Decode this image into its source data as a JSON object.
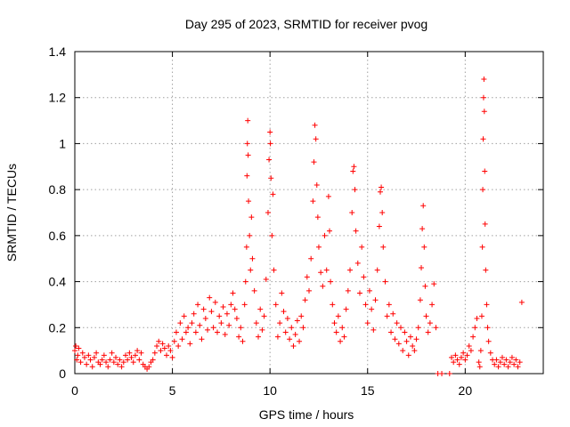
{
  "chart_data": {
    "type": "scatter",
    "title": "Day 295 of 2023, SRMTID for receiver pvog",
    "xlabel": "GPS time / hours",
    "ylabel": "SRMTID / TECUs",
    "xlim": [
      0,
      24
    ],
    "ylim": [
      0,
      1.4
    ],
    "xticks": [
      0,
      5,
      10,
      15,
      20
    ],
    "xtick_labels": [
      "0",
      "5",
      "10",
      "15",
      "20"
    ],
    "yticks": [
      0,
      0.2,
      0.4,
      0.6,
      0.8,
      1.0,
      1.2,
      1.4
    ],
    "ytick_labels": [
      "0",
      "0.2",
      "0.4",
      "0.6",
      "0.8",
      "1",
      "1.2",
      "1.4"
    ],
    "grid": true,
    "marker": "+",
    "color": "#ff0000",
    "series": [
      {
        "name": "SRMTID",
        "points": [
          [
            0.0,
            0.1
          ],
          [
            0.05,
            0.12
          ],
          [
            0.1,
            0.06
          ],
          [
            0.15,
            0.08
          ],
          [
            0.2,
            0.11
          ],
          [
            0.3,
            0.05
          ],
          [
            0.4,
            0.09
          ],
          [
            0.5,
            0.07
          ],
          [
            0.6,
            0.04
          ],
          [
            0.7,
            0.08
          ],
          [
            0.8,
            0.06
          ],
          [
            0.9,
            0.03
          ],
          [
            1.0,
            0.07
          ],
          [
            1.1,
            0.09
          ],
          [
            1.2,
            0.05
          ],
          [
            1.3,
            0.04
          ],
          [
            1.4,
            0.06
          ],
          [
            1.5,
            0.08
          ],
          [
            1.6,
            0.05
          ],
          [
            1.7,
            0.03
          ],
          [
            1.8,
            0.06
          ],
          [
            1.9,
            0.09
          ],
          [
            2.0,
            0.05
          ],
          [
            2.1,
            0.07
          ],
          [
            2.2,
            0.04
          ],
          [
            2.3,
            0.06
          ],
          [
            2.4,
            0.03
          ],
          [
            2.5,
            0.05
          ],
          [
            2.6,
            0.08
          ],
          [
            2.7,
            0.06
          ],
          [
            2.8,
            0.09
          ],
          [
            2.9,
            0.07
          ],
          [
            3.0,
            0.05
          ],
          [
            3.1,
            0.08
          ],
          [
            3.2,
            0.1
          ],
          [
            3.3,
            0.06
          ],
          [
            3.4,
            0.09
          ],
          [
            3.5,
            0.04
          ],
          [
            3.6,
            0.03
          ],
          [
            3.7,
            0.02
          ],
          [
            3.8,
            0.03
          ],
          [
            3.9,
            0.05
          ],
          [
            4.0,
            0.06
          ],
          [
            4.1,
            0.09
          ],
          [
            4.2,
            0.12
          ],
          [
            4.3,
            0.14
          ],
          [
            4.4,
            0.1
          ],
          [
            4.5,
            0.13
          ],
          [
            4.6,
            0.11
          ],
          [
            4.7,
            0.08
          ],
          [
            4.8,
            0.12
          ],
          [
            4.9,
            0.1
          ],
          [
            5.0,
            0.07
          ],
          [
            5.1,
            0.14
          ],
          [
            5.2,
            0.18
          ],
          [
            5.3,
            0.12
          ],
          [
            5.4,
            0.22
          ],
          [
            5.5,
            0.15
          ],
          [
            5.6,
            0.25
          ],
          [
            5.7,
            0.18
          ],
          [
            5.8,
            0.2
          ],
          [
            5.9,
            0.13
          ],
          [
            6.0,
            0.22
          ],
          [
            6.1,
            0.26
          ],
          [
            6.2,
            0.18
          ],
          [
            6.3,
            0.3
          ],
          [
            6.4,
            0.21
          ],
          [
            6.5,
            0.15
          ],
          [
            6.6,
            0.28
          ],
          [
            6.7,
            0.24
          ],
          [
            6.8,
            0.19
          ],
          [
            6.9,
            0.33
          ],
          [
            7.0,
            0.27
          ],
          [
            7.1,
            0.2
          ],
          [
            7.2,
            0.31
          ],
          [
            7.3,
            0.18
          ],
          [
            7.4,
            0.25
          ],
          [
            7.5,
            0.22
          ],
          [
            7.6,
            0.29
          ],
          [
            7.7,
            0.17
          ],
          [
            7.8,
            0.26
          ],
          [
            7.9,
            0.21
          ],
          [
            8.0,
            0.3
          ],
          [
            8.1,
            0.35
          ],
          [
            8.2,
            0.28
          ],
          [
            8.3,
            0.24
          ],
          [
            8.4,
            0.16
          ],
          [
            8.5,
            0.2
          ],
          [
            8.6,
            0.14
          ],
          [
            8.7,
            0.3
          ],
          [
            8.75,
            0.4
          ],
          [
            8.8,
            0.55
          ],
          [
            8.82,
            0.86
          ],
          [
            8.84,
            1.0
          ],
          [
            8.86,
            1.1
          ],
          [
            8.88,
            0.95
          ],
          [
            8.9,
            0.75
          ],
          [
            8.95,
            0.6
          ],
          [
            9.0,
            0.45
          ],
          [
            9.05,
            0.68
          ],
          [
            9.1,
            0.5
          ],
          [
            9.2,
            0.36
          ],
          [
            9.3,
            0.22
          ],
          [
            9.4,
            0.16
          ],
          [
            9.5,
            0.28
          ],
          [
            9.6,
            0.19
          ],
          [
            9.7,
            0.25
          ],
          [
            9.8,
            0.41
          ],
          [
            9.9,
            0.7
          ],
          [
            9.95,
            0.93
          ],
          [
            10.0,
            1.05
          ],
          [
            10.02,
            1.0
          ],
          [
            10.05,
            0.85
          ],
          [
            10.1,
            0.6
          ],
          [
            10.15,
            0.78
          ],
          [
            10.2,
            0.45
          ],
          [
            10.3,
            0.3
          ],
          [
            10.4,
            0.16
          ],
          [
            10.5,
            0.22
          ],
          [
            10.6,
            0.35
          ],
          [
            10.7,
            0.27
          ],
          [
            10.8,
            0.18
          ],
          [
            10.9,
            0.24
          ],
          [
            11.0,
            0.15
          ],
          [
            11.1,
            0.2
          ],
          [
            11.2,
            0.12
          ],
          [
            11.3,
            0.17
          ],
          [
            11.4,
            0.23
          ],
          [
            11.5,
            0.14
          ],
          [
            11.6,
            0.25
          ],
          [
            11.7,
            0.2
          ],
          [
            11.8,
            0.32
          ],
          [
            11.9,
            0.42
          ],
          [
            12.0,
            0.36
          ],
          [
            12.1,
            0.5
          ],
          [
            12.2,
            0.75
          ],
          [
            12.25,
            0.92
          ],
          [
            12.3,
            1.08
          ],
          [
            12.35,
            1.02
          ],
          [
            12.4,
            0.82
          ],
          [
            12.45,
            0.68
          ],
          [
            12.5,
            0.55
          ],
          [
            12.6,
            0.44
          ],
          [
            12.7,
            0.38
          ],
          [
            12.8,
            0.6
          ],
          [
            12.9,
            0.45
          ],
          [
            13.0,
            0.77
          ],
          [
            13.05,
            0.62
          ],
          [
            13.1,
            0.4
          ],
          [
            13.2,
            0.3
          ],
          [
            13.3,
            0.22
          ],
          [
            13.4,
            0.18
          ],
          [
            13.5,
            0.25
          ],
          [
            13.6,
            0.14
          ],
          [
            13.7,
            0.2
          ],
          [
            13.8,
            0.16
          ],
          [
            13.9,
            0.28
          ],
          [
            14.0,
            0.36
          ],
          [
            14.1,
            0.45
          ],
          [
            14.2,
            0.7
          ],
          [
            14.25,
            0.88
          ],
          [
            14.3,
            0.9
          ],
          [
            14.35,
            0.8
          ],
          [
            14.4,
            0.62
          ],
          [
            14.5,
            0.48
          ],
          [
            14.6,
            0.35
          ],
          [
            14.7,
            0.55
          ],
          [
            14.8,
            0.42
          ],
          [
            14.9,
            0.3
          ],
          [
            15.0,
            0.22
          ],
          [
            15.1,
            0.36
          ],
          [
            15.2,
            0.28
          ],
          [
            15.3,
            0.19
          ],
          [
            15.4,
            0.32
          ],
          [
            15.5,
            0.45
          ],
          [
            15.6,
            0.64
          ],
          [
            15.65,
            0.79
          ],
          [
            15.7,
            0.81
          ],
          [
            15.75,
            0.7
          ],
          [
            15.8,
            0.55
          ],
          [
            15.9,
            0.4
          ],
          [
            16.0,
            0.25
          ],
          [
            16.1,
            0.3
          ],
          [
            16.2,
            0.18
          ],
          [
            16.3,
            0.26
          ],
          [
            16.4,
            0.15
          ],
          [
            16.5,
            0.22
          ],
          [
            16.6,
            0.13
          ],
          [
            16.7,
            0.2
          ],
          [
            16.8,
            0.1
          ],
          [
            16.9,
            0.18
          ],
          [
            17.0,
            0.14
          ],
          [
            17.1,
            0.08
          ],
          [
            17.2,
            0.16
          ],
          [
            17.3,
            0.12
          ],
          [
            17.4,
            0.1
          ],
          [
            17.5,
            0.15
          ],
          [
            17.6,
            0.2
          ],
          [
            17.7,
            0.32
          ],
          [
            17.75,
            0.46
          ],
          [
            17.8,
            0.63
          ],
          [
            17.85,
            0.73
          ],
          [
            17.9,
            0.55
          ],
          [
            17.95,
            0.38
          ],
          [
            18.0,
            0.25
          ],
          [
            18.1,
            0.18
          ],
          [
            18.2,
            0.22
          ],
          [
            18.3,
            0.3
          ],
          [
            18.4,
            0.39
          ],
          [
            18.5,
            0.2
          ],
          [
            18.6,
            0.0
          ],
          [
            18.8,
            0.0
          ],
          [
            19.2,
            0.0
          ],
          [
            19.3,
            0.07
          ],
          [
            19.4,
            0.05
          ],
          [
            19.5,
            0.08
          ],
          [
            19.6,
            0.06
          ],
          [
            19.7,
            0.04
          ],
          [
            19.8,
            0.07
          ],
          [
            19.9,
            0.09
          ],
          [
            20.0,
            0.06
          ],
          [
            20.1,
            0.08
          ],
          [
            20.2,
            0.12
          ],
          [
            20.3,
            0.1
          ],
          [
            20.4,
            0.16
          ],
          [
            20.5,
            0.2
          ],
          [
            20.6,
            0.24
          ],
          [
            20.7,
            0.05
          ],
          [
            20.75,
            0.03
          ],
          [
            20.8,
            0.1
          ],
          [
            20.85,
            0.25
          ],
          [
            20.88,
            0.55
          ],
          [
            20.9,
            0.8
          ],
          [
            20.92,
            1.02
          ],
          [
            20.94,
            1.2
          ],
          [
            20.96,
            1.28
          ],
          [
            20.98,
            1.14
          ],
          [
            21.0,
            0.88
          ],
          [
            21.02,
            0.65
          ],
          [
            21.05,
            0.45
          ],
          [
            21.1,
            0.3
          ],
          [
            21.15,
            0.2
          ],
          [
            21.2,
            0.14
          ],
          [
            21.3,
            0.09
          ],
          [
            21.4,
            0.06
          ],
          [
            21.5,
            0.04
          ],
          [
            21.6,
            0.06
          ],
          [
            21.7,
            0.03
          ],
          [
            21.8,
            0.05
          ],
          [
            21.9,
            0.07
          ],
          [
            22.0,
            0.04
          ],
          [
            22.1,
            0.06
          ],
          [
            22.2,
            0.03
          ],
          [
            22.3,
            0.05
          ],
          [
            22.4,
            0.07
          ],
          [
            22.5,
            0.04
          ],
          [
            22.6,
            0.06
          ],
          [
            22.7,
            0.03
          ],
          [
            22.8,
            0.05
          ],
          [
            22.9,
            0.31
          ]
        ]
      }
    ]
  }
}
